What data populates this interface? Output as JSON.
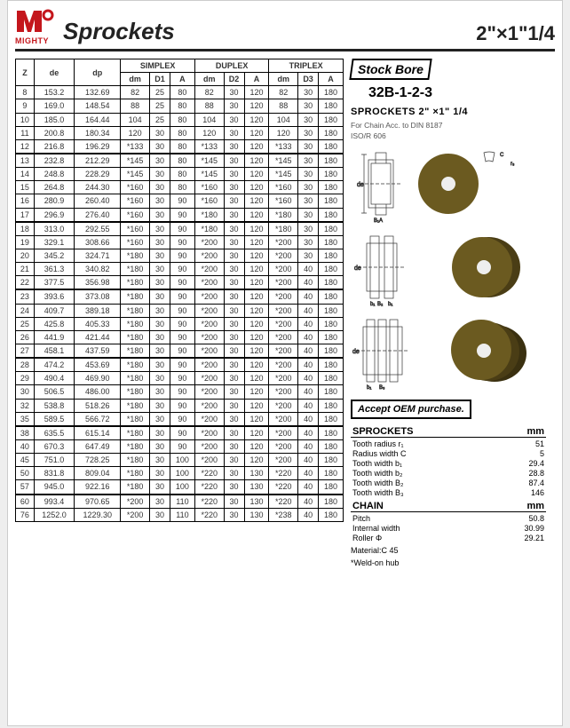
{
  "header": {
    "brand": "MIGHTY",
    "title": "Sprockets",
    "size": "2\"×1\"1/4"
  },
  "table": {
    "group_headers": [
      "SIMPLEX",
      "DUPLEX",
      "TRIPLEX"
    ],
    "col_headers": [
      "Z",
      "de",
      "dp",
      "dm",
      "D1",
      "A",
      "dm",
      "D2",
      "A",
      "dm",
      "D3",
      "A"
    ],
    "sections": [
      [
        [
          "8",
          "153.2",
          "132.69",
          "82",
          "25",
          "80",
          "82",
          "30",
          "120",
          "82",
          "30",
          "180"
        ],
        [
          "9",
          "169.0",
          "148.54",
          "88",
          "25",
          "80",
          "88",
          "30",
          "120",
          "88",
          "30",
          "180"
        ],
        [
          "10",
          "185.0",
          "164.44",
          "104",
          "25",
          "80",
          "104",
          "30",
          "120",
          "104",
          "30",
          "180"
        ],
        [
          "11",
          "200.8",
          "180.34",
          "120",
          "30",
          "80",
          "120",
          "30",
          "120",
          "120",
          "30",
          "180"
        ],
        [
          "12",
          "216.8",
          "196.29",
          "*133",
          "30",
          "80",
          "*133",
          "30",
          "120",
          "*133",
          "30",
          "180"
        ]
      ],
      [
        [
          "13",
          "232.8",
          "212.29",
          "*145",
          "30",
          "80",
          "*145",
          "30",
          "120",
          "*145",
          "30",
          "180"
        ],
        [
          "14",
          "248.8",
          "228.29",
          "*145",
          "30",
          "80",
          "*145",
          "30",
          "120",
          "*145",
          "30",
          "180"
        ],
        [
          "15",
          "264.8",
          "244.30",
          "*160",
          "30",
          "80",
          "*160",
          "30",
          "120",
          "*160",
          "30",
          "180"
        ],
        [
          "16",
          "280.9",
          "260.40",
          "*160",
          "30",
          "90",
          "*160",
          "30",
          "120",
          "*160",
          "30",
          "180"
        ],
        [
          "17",
          "296.9",
          "276.40",
          "*160",
          "30",
          "90",
          "*180",
          "30",
          "120",
          "*180",
          "30",
          "180"
        ]
      ],
      [
        [
          "18",
          "313.0",
          "292.55",
          "*160",
          "30",
          "90",
          "*180",
          "30",
          "120",
          "*180",
          "30",
          "180"
        ],
        [
          "19",
          "329.1",
          "308.66",
          "*160",
          "30",
          "90",
          "*200",
          "30",
          "120",
          "*200",
          "30",
          "180"
        ],
        [
          "20",
          "345.2",
          "324.71",
          "*180",
          "30",
          "90",
          "*200",
          "30",
          "120",
          "*200",
          "30",
          "180"
        ],
        [
          "21",
          "361.3",
          "340.82",
          "*180",
          "30",
          "90",
          "*200",
          "30",
          "120",
          "*200",
          "40",
          "180"
        ],
        [
          "22",
          "377.5",
          "356.98",
          "*180",
          "30",
          "90",
          "*200",
          "30",
          "120",
          "*200",
          "40",
          "180"
        ]
      ],
      [
        [
          "23",
          "393.6",
          "373.08",
          "*180",
          "30",
          "90",
          "*200",
          "30",
          "120",
          "*200",
          "40",
          "180"
        ],
        [
          "24",
          "409.7",
          "389.18",
          "*180",
          "30",
          "90",
          "*200",
          "30",
          "120",
          "*200",
          "40",
          "180"
        ],
        [
          "25",
          "425.8",
          "405.33",
          "*180",
          "30",
          "90",
          "*200",
          "30",
          "120",
          "*200",
          "40",
          "180"
        ],
        [
          "26",
          "441.9",
          "421.44",
          "*180",
          "30",
          "90",
          "*200",
          "30",
          "120",
          "*200",
          "40",
          "180"
        ],
        [
          "27",
          "458.1",
          "437.59",
          "*180",
          "30",
          "90",
          "*200",
          "30",
          "120",
          "*200",
          "40",
          "180"
        ]
      ],
      [
        [
          "28",
          "474.2",
          "453.69",
          "*180",
          "30",
          "90",
          "*200",
          "30",
          "120",
          "*200",
          "40",
          "180"
        ],
        [
          "29",
          "490.4",
          "469.90",
          "*180",
          "30",
          "90",
          "*200",
          "30",
          "120",
          "*200",
          "40",
          "180"
        ],
        [
          "30",
          "506.5",
          "486.00",
          "*180",
          "30",
          "90",
          "*200",
          "30",
          "120",
          "*200",
          "40",
          "180"
        ],
        [
          "32",
          "538.8",
          "518.26",
          "*180",
          "30",
          "90",
          "*200",
          "30",
          "120",
          "*200",
          "40",
          "180"
        ],
        [
          "35",
          "589.5",
          "566.72",
          "*180",
          "30",
          "90",
          "*200",
          "30",
          "120",
          "*200",
          "40",
          "180"
        ]
      ],
      [
        [
          "38",
          "635.5",
          "615.14",
          "*180",
          "30",
          "90",
          "*200",
          "30",
          "120",
          "*200",
          "40",
          "180"
        ],
        [
          "40",
          "670.3",
          "647.49",
          "*180",
          "30",
          "90",
          "*200",
          "30",
          "120",
          "*200",
          "40",
          "180"
        ],
        [
          "45",
          "751.0",
          "728.25",
          "*180",
          "30",
          "100",
          "*200",
          "30",
          "120",
          "*200",
          "40",
          "180"
        ],
        [
          "50",
          "831.8",
          "809.04",
          "*180",
          "30",
          "100",
          "*220",
          "30",
          "130",
          "*220",
          "40",
          "180"
        ],
        [
          "57",
          "945.0",
          "922.16",
          "*180",
          "30",
          "100",
          "*220",
          "30",
          "130",
          "*220",
          "40",
          "180"
        ]
      ],
      [
        [
          "60",
          "993.4",
          "970.65",
          "*200",
          "30",
          "110",
          "*220",
          "30",
          "130",
          "*220",
          "40",
          "180"
        ],
        [
          "76",
          "1252.0",
          "1229.30",
          "*200",
          "30",
          "110",
          "*220",
          "30",
          "130",
          "*238",
          "40",
          "180"
        ]
      ]
    ]
  },
  "right": {
    "stock_bore": "Stock Bore",
    "code": "32B-1-2-3",
    "title2": "SPROCKETS 2\" ×1\" 1/4",
    "for_chain": "For Chain   Acc. to   DIN 8187",
    "iso": "ISO/R 606",
    "accept": "Accept OEM purchase.",
    "sprocket_specs": {
      "header_l": "SPROCKETS",
      "header_r": "mm",
      "rows": [
        {
          "l": "Tooth radius r₁",
          "r": "51"
        },
        {
          "l": "Radius width C",
          "r": "5"
        },
        {
          "l": "Tooth width b₁",
          "r": "29.4"
        },
        {
          "l": "Tooth width b₂",
          "r": "28.8"
        },
        {
          "l": "Tooth width B₂",
          "r": "87.4"
        },
        {
          "l": "Tooth width B₃",
          "r": "146"
        }
      ]
    },
    "chain_specs": {
      "header_l": "CHAIN",
      "header_r": "mm",
      "rows": [
        {
          "l": "Pitch",
          "r": "50.8"
        },
        {
          "l": "Internal width",
          "r": "30.99"
        },
        {
          "l": "Roller Φ",
          "r": "29.21"
        }
      ]
    },
    "material": "Material:C 45",
    "weld": "*Weld-on hub"
  },
  "colors": {
    "brand": "#c4161c",
    "sprocket": "#6b5a20",
    "sprocket_dark": "#4a3d15"
  }
}
